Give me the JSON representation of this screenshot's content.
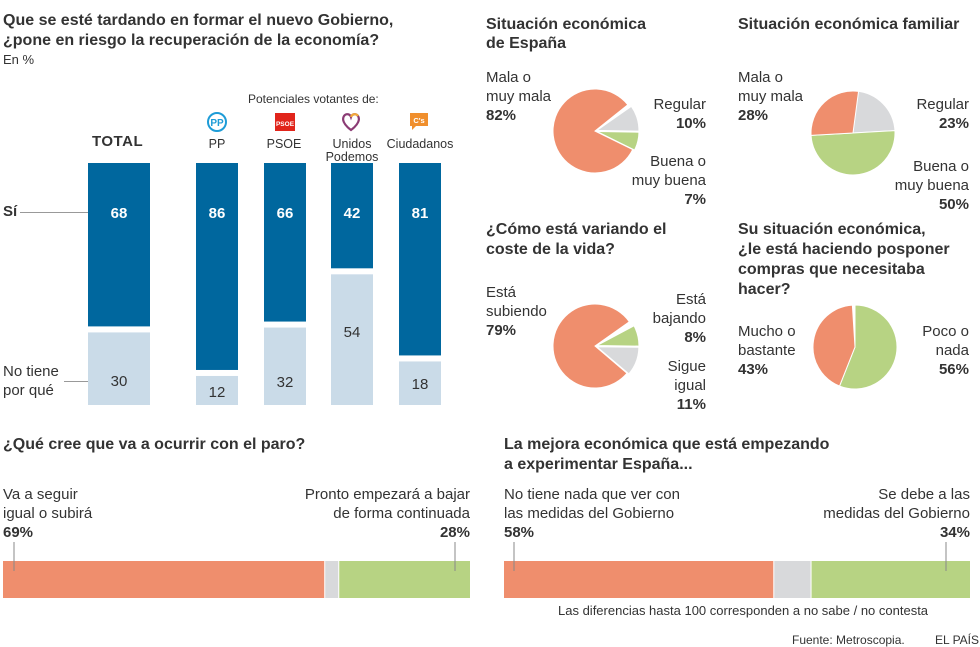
{
  "colors": {
    "si": "#00679e",
    "no": "#cadbe8",
    "mala": "#ef8e6d",
    "regular": "#d8d9db",
    "buena": "#b7d383",
    "text": "#333333"
  },
  "main_chart": {
    "title_line1": "Que se esté tardando en formar el nuevo Gobierno,",
    "title_line2": "¿pone en riesgo la recuperación de la economía?",
    "unit": "En %",
    "voters_header": "Potenciales votantes de:",
    "row_label_si": "Sí",
    "row_label_no_line1": "No tiene",
    "row_label_no_line2": "por qué",
    "total_label": "TOTAL",
    "parties": [
      {
        "name_line1": "PP",
        "name_line2": "",
        "icon": "pp-logo-icon"
      },
      {
        "name_line1": "PSOE",
        "name_line2": "",
        "icon": "psoe-logo-icon"
      },
      {
        "name_line1": "Unidos",
        "name_line2": "Podemos",
        "icon": "unidos-podemos-heart-icon"
      },
      {
        "name_line1": "Ciudadanos",
        "name_line2": "",
        "icon": "ciudadanos-logo-icon"
      }
    ]
  },
  "pie_titles": {
    "espana_line1": "Situación económica",
    "espana_line2": "de España",
    "familiar": "Situación económica familiar",
    "coste_line1": "¿Cómo está variando el",
    "coste_line2": "coste de la vida?",
    "compras_line1": "Su situación económica,",
    "compras_line2": "¿le está haciendo posponer",
    "compras_line3": "compras que necesitaba",
    "compras_line4": "hacer?"
  },
  "pie_labels": {
    "espana": {
      "mala_l1": "Mala o",
      "mala_l2": "muy mala",
      "mala_pct": "82%",
      "regular_l1": "Regular",
      "regular_pct": "10%",
      "buena_l1": "Buena o",
      "buena_l2": "muy buena",
      "buena_pct": "7%"
    },
    "familiar": {
      "mala_l1": "Mala o",
      "mala_l2": "muy mala",
      "mala_pct": "28%",
      "regular_l1": "Regular",
      "regular_pct": "23%",
      "buena_l1": "Buena o",
      "buena_l2": "muy buena",
      "buena_pct": "50%"
    },
    "coste": {
      "sub_l1": "Está",
      "sub_l2": "subiendo",
      "sub_pct": "79%",
      "baj_l1": "Está",
      "baj_l2": "bajando",
      "baj_pct": "8%",
      "sig_l1": "Sigue",
      "sig_l2": "igual",
      "sig_pct": "11%"
    },
    "compras": {
      "mucho_l1": "Mucho o",
      "mucho_l2": "bastante",
      "mucho_pct": "43%",
      "poco_l1": "Poco o",
      "poco_l2": "nada",
      "poco_pct": "56%"
    }
  },
  "hbar_labels": {
    "paro": {
      "title": "¿Qué cree que va a ocurrir con el paro?",
      "left_l1": "Va a seguir",
      "left_l2": "igual o subirá",
      "left_pct": "69%",
      "right_l1": "Pronto empezará a bajar",
      "right_l2": "de forma continuada",
      "right_pct": "28%"
    },
    "mejora": {
      "title_line1": "La mejora económica que está empezando",
      "title_line2": "a experimentar España...",
      "left_l1": "No tiene nada que ver con",
      "left_l2": "las medidas del Gobierno",
      "left_pct": "58%",
      "right_l1": "Se debe a las",
      "right_l2": "medidas del Gobierno",
      "right_pct": "34%"
    }
  },
  "footer": {
    "note": "Las diferencias hasta 100 corresponden a no sabe / no contesta",
    "source": "Fuente: Metroscopia.",
    "brand": "EL PAÍS"
  },
  "chart_data": [
    {
      "type": "bar",
      "stacked": true,
      "title": "Que se esté tardando en formar el nuevo Gobierno, ¿pone en riesgo la recuperación de la economía?",
      "subtitle": "En %",
      "categories": [
        "TOTAL",
        "PP",
        "PSOE",
        "Unidos Podemos",
        "Ciudadanos"
      ],
      "series": [
        {
          "name": "Sí",
          "values": [
            68,
            86,
            66,
            42,
            81
          ]
        },
        {
          "name": "No tiene por qué",
          "values": [
            30,
            12,
            32,
            54,
            18
          ]
        }
      ],
      "ylim": [
        0,
        100
      ],
      "grid": false
    },
    {
      "type": "pie",
      "title": "Situación económica de España",
      "labels": [
        "Mala o muy mala",
        "Regular",
        "Buena o muy buena"
      ],
      "values": [
        82,
        10,
        7
      ]
    },
    {
      "type": "pie",
      "title": "Situación económica familiar",
      "labels": [
        "Regular",
        "Buena o muy buena",
        "Mala o muy mala"
      ],
      "values": [
        23,
        50,
        28
      ]
    },
    {
      "type": "pie",
      "title": "¿Cómo está variando el coste de la vida?",
      "labels": [
        "Está subiendo",
        "Está bajando",
        "Sigue igual"
      ],
      "values": [
        79,
        8,
        11
      ]
    },
    {
      "type": "pie",
      "title": "Su situación económica, ¿le está haciendo posponer compras que necesitaba hacer?",
      "labels": [
        "Poco o nada",
        "Mucho o bastante"
      ],
      "values": [
        56,
        43
      ]
    },
    {
      "type": "bar",
      "orientation": "horizontal",
      "stacked": true,
      "title": "¿Qué cree que va a ocurrir con el paro?",
      "series": [
        {
          "name": "Va a seguir igual o subirá",
          "values": [
            69
          ]
        },
        {
          "name": "No sabe / no contesta",
          "values": [
            3
          ]
        },
        {
          "name": "Pronto empezará a bajar de forma continuada",
          "values": [
            28
          ]
        }
      ]
    },
    {
      "type": "bar",
      "orientation": "horizontal",
      "stacked": true,
      "title": "La mejora económica que está empezando a experimentar España...",
      "series": [
        {
          "name": "No tiene nada que ver con las medidas del Gobierno",
          "values": [
            58
          ]
        },
        {
          "name": "No sabe / no contesta",
          "values": [
            8
          ]
        },
        {
          "name": "Se debe a las medidas del Gobierno",
          "values": [
            34
          ]
        }
      ]
    }
  ]
}
